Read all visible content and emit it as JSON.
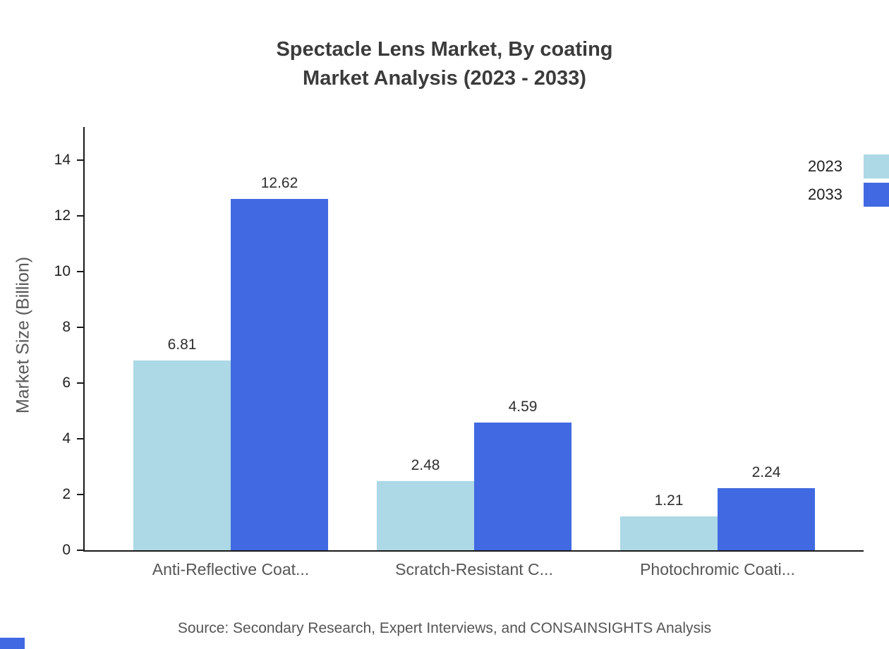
{
  "title": {
    "line1": "Spectacle Lens Market, By coating",
    "line2": "Market Analysis (2023 - 2033)"
  },
  "ylabel": "Market Size (Billion)",
  "source": "Source: Secondary Research, Expert Interviews, and CONSAINSIGHTS Analysis",
  "colors": {
    "series_2023": "#ADD8E6",
    "series_2033": "#4169E1",
    "axis": "#1a1a1a",
    "muted_text": "#565656",
    "title_text": "#3b3b3b",
    "corner_mark": "#4169E1"
  },
  "chart_data": {
    "type": "bar",
    "title": "Spectacle Lens Market, By coating Market Analysis (2023 - 2033)",
    "categories": [
      "Anti-Reflective Coat...",
      "Scratch-Resistant C...",
      "Photochromic Coati..."
    ],
    "series": [
      {
        "name": "2023",
        "color": "#ADD8E6",
        "values": [
          6.81,
          2.48,
          1.21
        ]
      },
      {
        "name": "2033",
        "color": "#4169E1",
        "values": [
          12.62,
          4.59,
          2.24
        ]
      }
    ],
    "value_labels": {
      "2023": [
        "6.81",
        "2.48",
        "1.21"
      ],
      "2033": [
        "12.62",
        "4.59",
        "2.24"
      ]
    },
    "xlabel": "",
    "ylabel": "Market Size (Billion)",
    "ylim": [
      0,
      15.2
    ],
    "yticks": [
      0,
      2,
      4,
      6,
      8,
      10,
      12,
      14
    ],
    "grid": false,
    "legend_position": "top-right",
    "source_note": "Source: Secondary Research, Expert Interviews, and CONSAINSIGHTS Analysis"
  }
}
